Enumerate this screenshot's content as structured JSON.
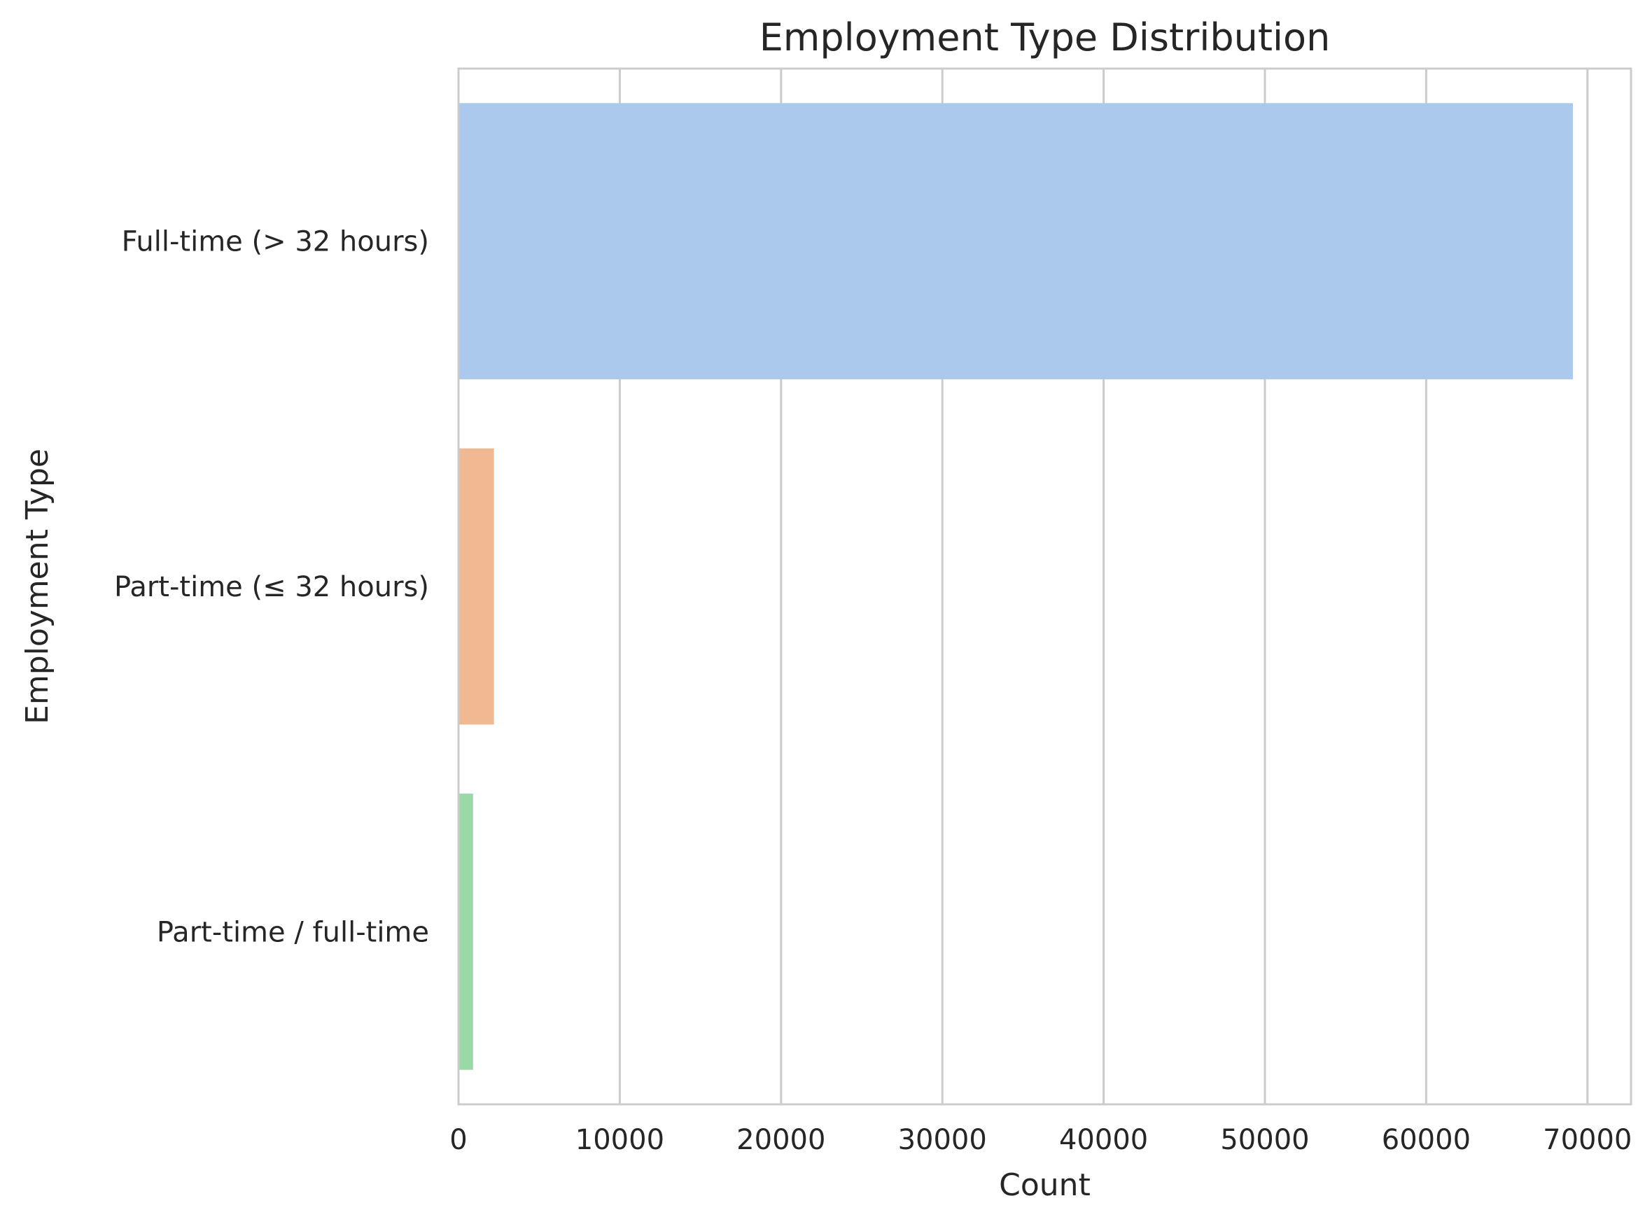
{
  "chart_data": {
    "type": "bar",
    "orientation": "horizontal",
    "title": "Employment Type Distribution",
    "xlabel": "Count",
    "ylabel": "Employment Type",
    "categories": [
      "Full-time (> 32 hours)",
      "Part-time (≤ 32 hours)",
      "Part-time / full-time"
    ],
    "values": [
      69100,
      2200,
      900
    ],
    "colors": [
      "#abc9ec",
      "#f1b992",
      "#98d9a6"
    ],
    "xlim": [
      0,
      72700
    ],
    "xticks": [
      0,
      10000,
      20000,
      30000,
      40000,
      50000,
      60000,
      70000
    ],
    "xtick_labels": [
      "0",
      "10000",
      "20000",
      "30000",
      "40000",
      "50000",
      "60000",
      "70000"
    ],
    "grid": true,
    "legend": "none"
  }
}
